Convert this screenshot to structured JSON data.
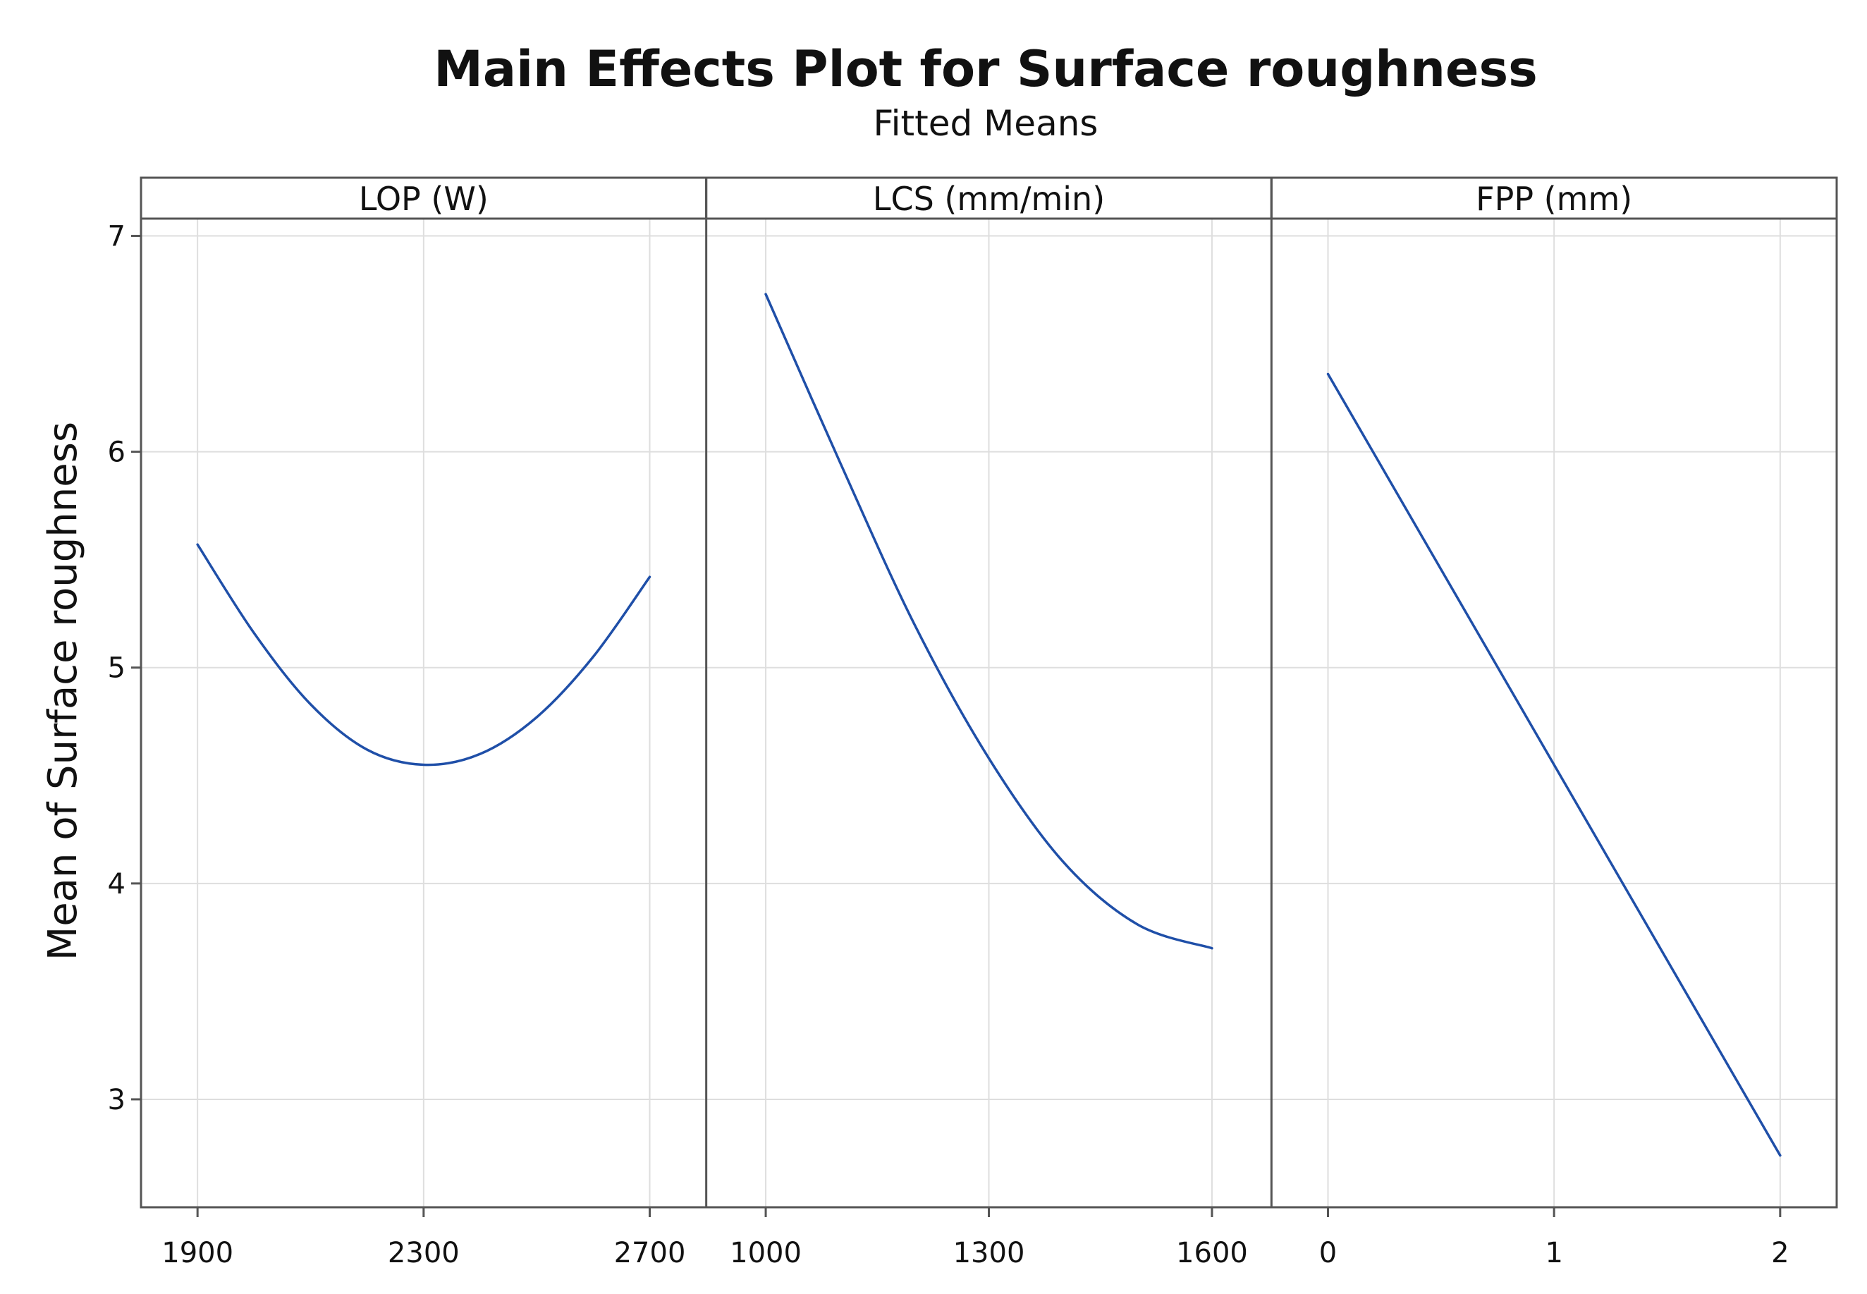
{
  "chart_data": {
    "type": "line",
    "title": "Main Effects Plot for Surface roughness",
    "subtitle": "Fitted Means",
    "ylabel": "Mean of Surface roughness",
    "ylim": [
      2.5,
      7.08
    ],
    "yticks": [
      3,
      4,
      5,
      6,
      7
    ],
    "line_color": "#1f4fa8",
    "panels": [
      {
        "label": "LOP (W)",
        "xlim": [
          1800,
          2800
        ],
        "xticks": [
          1900,
          2300,
          2700
        ],
        "x": [
          1900,
          2000,
          2100,
          2200,
          2300,
          2400,
          2500,
          2600,
          2700
        ],
        "y": [
          5.57,
          5.16,
          4.83,
          4.62,
          4.55,
          4.6,
          4.77,
          5.05,
          5.42
        ]
      },
      {
        "label": "LCS (mm/min)",
        "xlim": [
          920,
          1680
        ],
        "xticks": [
          1000,
          1300,
          1600
        ],
        "x": [
          1000,
          1100,
          1200,
          1300,
          1400,
          1500,
          1600
        ],
        "y": [
          6.73,
          5.95,
          5.2,
          4.58,
          4.1,
          3.81,
          3.7
        ]
      },
      {
        "label": "FPP (mm)",
        "xlim": [
          -0.25,
          2.25
        ],
        "xticks": [
          0,
          1,
          2
        ],
        "x": [
          0,
          1,
          2
        ],
        "y": [
          6.36,
          4.55,
          2.74
        ]
      }
    ]
  }
}
